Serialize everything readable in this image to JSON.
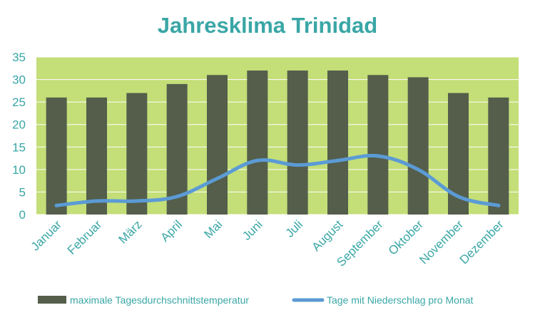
{
  "colors": {
    "title": "#3aa6a6",
    "tick": "#3aa6a6",
    "legend_text": "#3aa6a6",
    "plot_bg": "#c4de78",
    "gridline": "#ffffff",
    "bar": "#545e4b",
    "line": "#5b9bd5"
  },
  "chart_data": {
    "type": "bar",
    "title": "Jahresklima  Trinidad",
    "xlabel": "",
    "ylabel": "",
    "ylim": [
      0,
      35
    ],
    "yticks": [
      "0",
      "5",
      "10",
      "15",
      "20",
      "25",
      "30",
      "35"
    ],
    "grid": true,
    "legend_position": "bottom",
    "categories": [
      "Januar",
      "Februar",
      "März",
      "April",
      "Mai",
      "Juni",
      "Juli",
      "August",
      "September",
      "Oktober",
      "November",
      "Dezember"
    ],
    "series": [
      {
        "name": "maximale Tagesdurchschnittstemperatur",
        "type": "bar",
        "values": [
          26,
          26,
          27,
          29,
          31,
          32,
          32,
          32,
          31,
          30.5,
          27,
          26
        ]
      },
      {
        "name": "Tage mit Niederschlag pro Monat",
        "type": "line",
        "values": [
          2,
          3,
          3,
          4,
          8,
          12,
          11,
          12,
          13,
          10,
          4,
          2
        ]
      }
    ]
  }
}
